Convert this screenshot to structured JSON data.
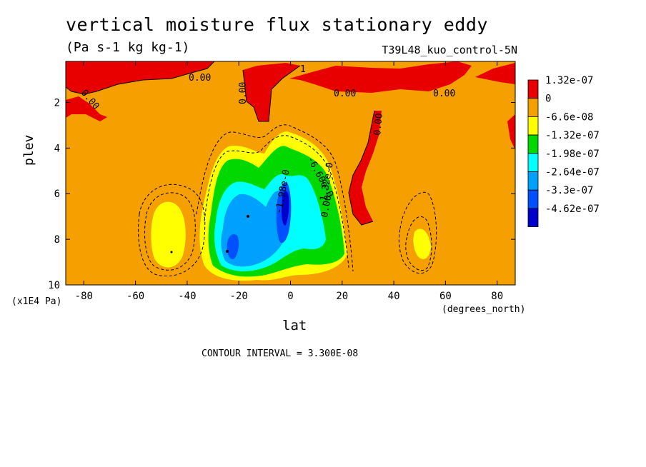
{
  "title": "vertical moisture flux stationary eddy",
  "units": "(Pa s-1 kg kg-1)",
  "dataset": "T39L48_kuo_control-5N",
  "contour_interval": "CONTOUR INTERVAL = 3.300E-08",
  "chart_data": {
    "type": "heatmap",
    "title": "vertical moisture flux stationary eddy",
    "units": "(Pa s-1 kg kg-1)",
    "xlabel": "lat",
    "xunits": "(degrees_north)",
    "ylabel": "plev",
    "yunits": "(x1E4 Pa)",
    "xlim": [
      -87,
      87
    ],
    "ylim": [
      10,
      0.2
    ],
    "x_ticks": [
      -80,
      -60,
      -40,
      -20,
      0,
      20,
      40,
      60,
      80
    ],
    "y_ticks": [
      2,
      4,
      6,
      8,
      10
    ],
    "legend": {
      "placement": "right",
      "entries": [
        {
          "label": "1.32e-07",
          "color": "#e80000"
        },
        {
          "label": "0",
          "color": "#f5a000"
        },
        {
          "label": "-6.6e-08",
          "color": "#ffff00"
        },
        {
          "label": "-1.32e-07",
          "color": "#00d800"
        },
        {
          "label": "-1.98e-07",
          "color": "#00ffff"
        },
        {
          "label": "-2.64e-07",
          "color": "#00a0ff"
        },
        {
          "label": "-3.3e-07",
          "color": "#0050ff"
        },
        {
          "label": "-4.62e-07",
          "color": "#0000cd"
        }
      ]
    },
    "contour_labels": [
      "0.00",
      "0.00",
      "0.00",
      "0.00",
      "0.00",
      "0.00",
      "0.00",
      "-6.60e-0",
      "-1.32e-0",
      "1",
      "-1.98e-0"
    ],
    "features": [
      {
        "kind": "minimum",
        "lat": -22,
        "plev": 7.5,
        "value_range": "-3.3e-07"
      },
      {
        "kind": "minimum",
        "lat": -2,
        "plev": 6.5,
        "value_range": "-4.62e-07"
      },
      {
        "kind": "minimum",
        "lat": 8,
        "plev": 7.0,
        "value_range": "-2.64e-07"
      },
      {
        "kind": "positive",
        "lat": 30,
        "plev": 5.0,
        "value_range": "0 to 1.32e-07"
      },
      {
        "kind": "negative",
        "lat": -48,
        "plev": 8.3,
        "value_range": "-6.6e-08"
      },
      {
        "kind": "negative",
        "lat": 52,
        "plev": 8.0,
        "value_range": "-6.6e-08"
      }
    ]
  }
}
